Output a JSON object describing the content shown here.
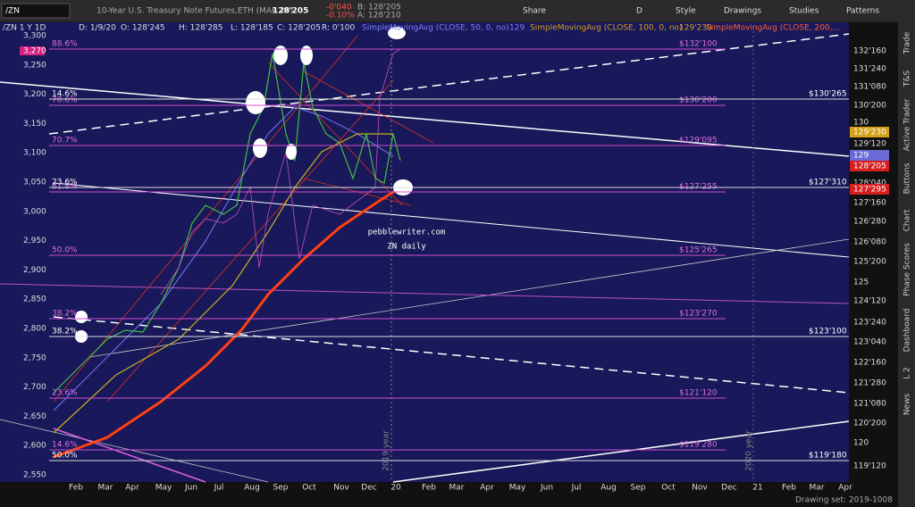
{
  "toolbar": {
    "symbol": "/ZN",
    "description": "10-Year U.S. Treasury Note Futures,ETH (MAR 20)",
    "last": "128'205",
    "change": "-0'040",
    "change_pct": "-0.10%",
    "bid": "B: 128'205",
    "ask": "A: 128'210",
    "buttons": [
      "Share",
      "D",
      "Style",
      "Drawings",
      "Studies",
      "Patterns"
    ]
  },
  "info_line": [
    "/ZN 1 Y 1D",
    "D: 1/9/20",
    "O: 128'245",
    "H: 128'285",
    "L: 128'185",
    "C: 128'205",
    "R: 0'100"
  ],
  "studies": [
    {
      "name": "SimpleMovingAvg (CLOSE, 50, 0, no)",
      "value": "129"
    },
    {
      "name": "SimpleMovingAvg (CLOSE, 100, 0, no)",
      "value": "129'230"
    },
    {
      "name": "SimpleMovingAvg (CLOSE, 200,..."
    }
  ],
  "left_axis": [
    "3,300",
    "3,250",
    "3,200",
    "3,150",
    "3,100",
    "3,050",
    "3,000",
    "2,950",
    "2,900",
    "2,850",
    "2,800",
    "2,750",
    "2,700",
    "2,650",
    "2,600",
    "2,550"
  ],
  "left_marker": "3,270",
  "right_axis": [
    "132'160",
    "131'240",
    "131'080",
    "130'200",
    "130",
    "129'120",
    "128'040",
    "127'160",
    "126'280",
    "126'080",
    "125'200",
    "125",
    "124'120",
    "123'240",
    "123'040",
    "122'160",
    "121'280",
    "121'080",
    "120'200",
    "120",
    "119'120"
  ],
  "right_markers": [
    {
      "label": "129'230",
      "color": "#d4a017"
    },
    {
      "label": "129",
      "color": "#6a6ad8"
    },
    {
      "label": "128'205",
      "color": "#d62020"
    },
    {
      "label": "127'295",
      "color": "#d62020"
    }
  ],
  "fib_levels": [
    {
      "pct": "88.6%",
      "price": "$132'100"
    },
    {
      "pct": "78.6%",
      "price": "$130'200"
    },
    {
      "pct": "70.7%",
      "price": "$129'095"
    },
    {
      "pct": "61.8%",
      "price": "$127'255"
    },
    {
      "pct": "50.0%",
      "price": "$125'265"
    },
    {
      "pct": "38.2%",
      "price": "$123'270"
    },
    {
      "pct": "23.6%",
      "price": "$121'120"
    },
    {
      "pct": "14.6%",
      "price": "$119'280"
    }
  ],
  "white_levels": [
    {
      "pct": "14.6%",
      "price": "$130'265"
    },
    {
      "pct": "23.6%",
      "price": "$127'310"
    },
    {
      "pct": "38.2%",
      "price": "$123'100"
    },
    {
      "pct": "50.0%",
      "price": "$119'180"
    }
  ],
  "x_axis": [
    "Feb",
    "Mar",
    "Apr",
    "May",
    "Jun",
    "Jul",
    "Aug",
    "Sep",
    "Oct",
    "Nov",
    "Dec",
    "20",
    "Feb",
    "Mar",
    "Apr",
    "May",
    "Jun",
    "Jul",
    "Aug",
    "Sep",
    "Oct",
    "Nov",
    "Dec",
    "21",
    "Feb",
    "Mar",
    "Apr"
  ],
  "annotation": [
    "pebblewriter.com",
    "ZN daily"
  ],
  "year_labels": [
    "2019 year",
    "2020 year"
  ],
  "sidebar": [
    "Trade",
    "T&S",
    "Active Trader",
    "Buttons",
    "Chart",
    "Phase Scores",
    "Dashboard",
    "L 2",
    "News"
  ],
  "status": "Drawing set: 2019-1008"
}
